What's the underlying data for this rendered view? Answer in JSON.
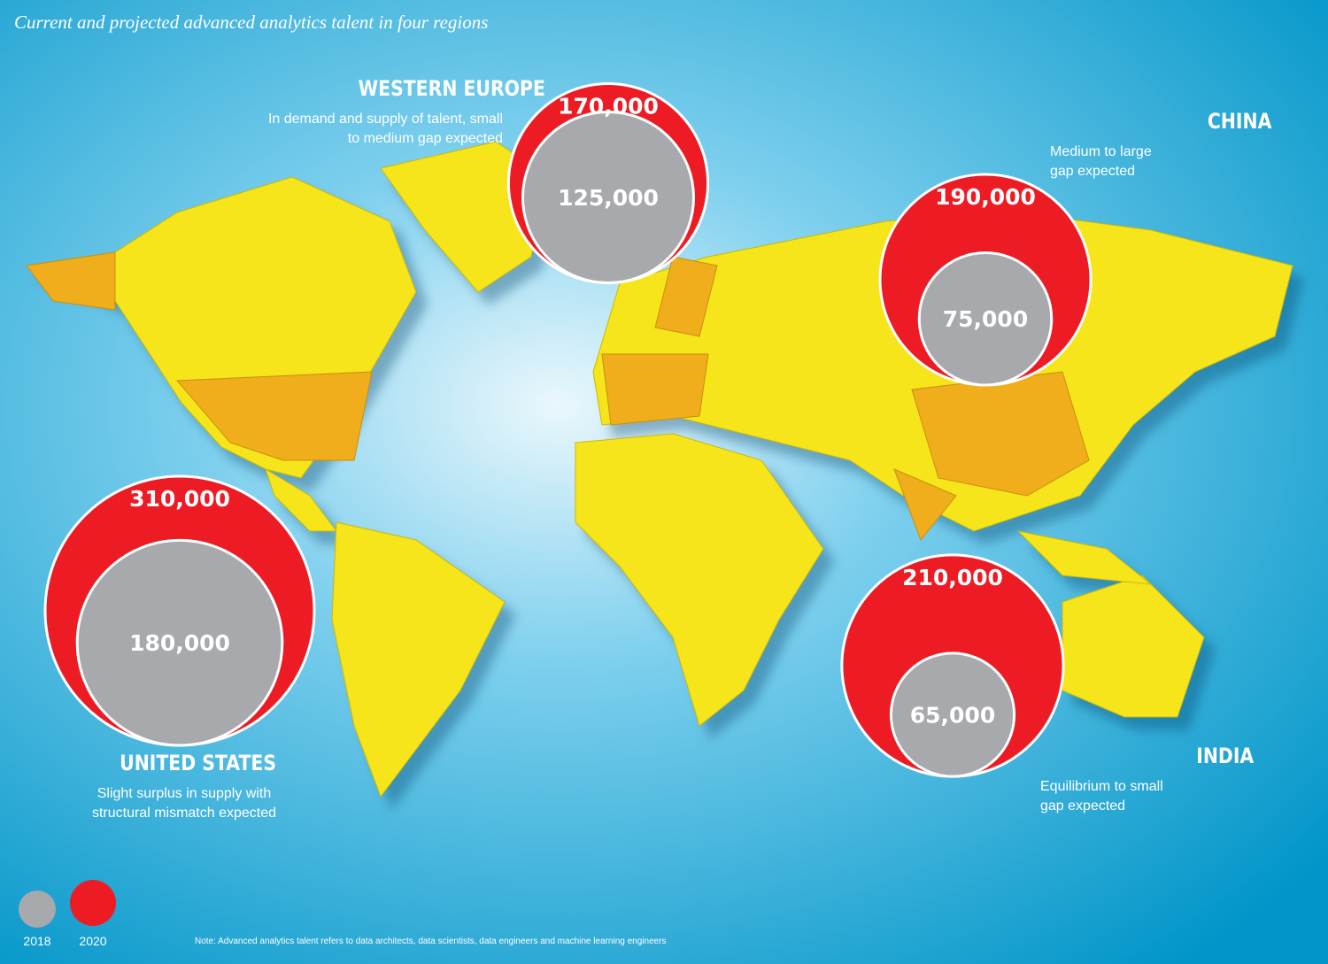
{
  "title": "Current and projected advanced analytics talent in four regions",
  "legend": [
    {
      "label": "2018",
      "color": "#a7a9ac"
    },
    {
      "label": "2020",
      "color": "#ed1c24"
    }
  ],
  "regions": [
    {
      "name": "WESTERN EUROPE",
      "description": [
        "In demand and supply of talent, small",
        "to medium gap expected"
      ],
      "values": [
        125000,
        170000
      ],
      "value_labels": [
        "125,000",
        "170,000"
      ]
    },
    {
      "name": "CHINA",
      "description": [
        "Medium to large",
        "gap expected"
      ],
      "values": [
        75000,
        190000
      ],
      "value_labels": [
        "75,000",
        "190,000"
      ]
    },
    {
      "name": "UNITED STATES",
      "description": [
        "Slight surplus in supply with",
        "structural mismatch expected"
      ],
      "values": [
        180000,
        310000
      ],
      "value_labels": [
        "180,000",
        "310,000"
      ]
    },
    {
      "name": "INDIA",
      "description": [
        "Equilibrium to small",
        "gap expected"
      ],
      "values": [
        65000,
        210000
      ],
      "value_labels": [
        "65,000",
        "210,000"
      ]
    }
  ],
  "note": "Note: Advanced analytics talent refers to data architects, data scientists, data engineers and machine learning engineers"
}
